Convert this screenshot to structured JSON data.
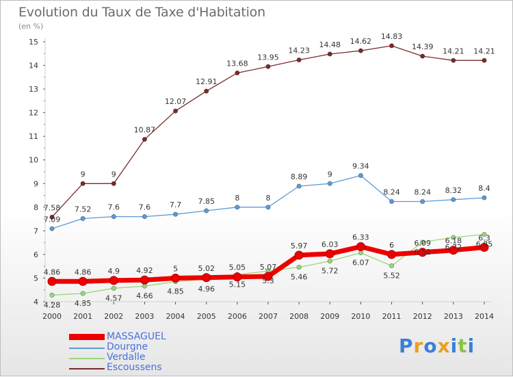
{
  "header": {
    "title": "Evolution du Taux de Taxe d'Habitation",
    "subtitle": "(en %)"
  },
  "chart_data": {
    "type": "line",
    "title": "Evolution du Taux de Taxe d'Habitation",
    "ylabel": "(en %)",
    "x": [
      "2000",
      "2001",
      "2002",
      "2003",
      "2004",
      "2005",
      "2006",
      "2007",
      "2008",
      "2009",
      "2010",
      "2011",
      "2012",
      "2013",
      "2014"
    ],
    "ylim": [
      4,
      15
    ],
    "yticks": [
      "4",
      "5",
      "6",
      "7",
      "8",
      "9",
      "10",
      "11",
      "12",
      "13",
      "14",
      "15"
    ],
    "grid": false,
    "legend": "bottom-left",
    "series": [
      {
        "name": "MASSAGUEL",
        "color": "#ee0000",
        "values": [
          4.86,
          4.86,
          4.9,
          4.92,
          5,
          5.02,
          5.05,
          5.07,
          5.97,
          6.03,
          6.33,
          6,
          6.09,
          6.18,
          6.3
        ],
        "labels": [
          "4.86",
          "4.86",
          "4.9",
          "4.92",
          "5",
          "5.02",
          "5.05",
          "5.07",
          "5.97",
          "6.03",
          "6.33",
          "6",
          "6.09",
          "6.18",
          "6.3"
        ]
      },
      {
        "name": "Dourgne",
        "color": "#5b9bd5",
        "values": [
          7.09,
          7.52,
          7.6,
          7.6,
          7.7,
          7.85,
          8,
          8,
          8.89,
          9,
          9.34,
          8.24,
          8.24,
          8.32,
          8.4
        ],
        "labels": [
          "7.09",
          "7.52",
          "7.6",
          "7.6",
          "7.7",
          "7.85",
          "8",
          "8",
          "8.89",
          "9",
          "9.34",
          "8.24",
          "8.24",
          "8.32",
          "8.4"
        ]
      },
      {
        "name": "Verdalle",
        "color": "#99d67a",
        "values": [
          4.28,
          4.35,
          4.57,
          4.66,
          4.85,
          4.96,
          5.15,
          5.3,
          5.46,
          5.72,
          6.07,
          5.52,
          6.52,
          6.72,
          6.85
        ],
        "labels": [
          "4.28",
          "4.35",
          "4.57",
          "4.66",
          "4.85",
          "4.96",
          "5.15",
          "5.3",
          "5.46",
          "5.72",
          "6.07",
          "5.52",
          "6.52",
          "6.72",
          "6.85"
        ]
      },
      {
        "name": "Escoussens",
        "color": "#7a2a2a",
        "values": [
          7.58,
          9,
          9,
          10.87,
          12.07,
          12.91,
          13.68,
          13.95,
          14.23,
          14.48,
          14.62,
          14.83,
          14.39,
          14.21,
          14.21
        ],
        "labels": [
          "7.58",
          "9",
          "9",
          "10.87",
          "12.07",
          "12.91",
          "13.68",
          "13.95",
          "14.23",
          "14.48",
          "14.62",
          "14.83",
          "14.39",
          "14.21",
          "14.21"
        ]
      }
    ]
  },
  "legend": [
    {
      "name": "MASSAGUEL",
      "color": "#ee0000",
      "label_color": "#4a6fe0"
    },
    {
      "name": "Dourgne",
      "color": "#5b9bd5",
      "label_color": "#4a6fe0"
    },
    {
      "name": "Verdalle",
      "color": "#99d67a",
      "label_color": "#4a6fe0"
    },
    {
      "name": "Escoussens",
      "color": "#7a2a2a",
      "label_color": "#4a6fe0"
    }
  ],
  "logo": {
    "letters": [
      "P",
      "r",
      "o",
      "x",
      "i",
      "t",
      "i"
    ],
    "colors": [
      "#3b7fd6",
      "#e8a020",
      "#3b7fd6",
      "#e8a020",
      "#3b7fd6",
      "#8bc34a",
      "#3b7fd6"
    ]
  }
}
